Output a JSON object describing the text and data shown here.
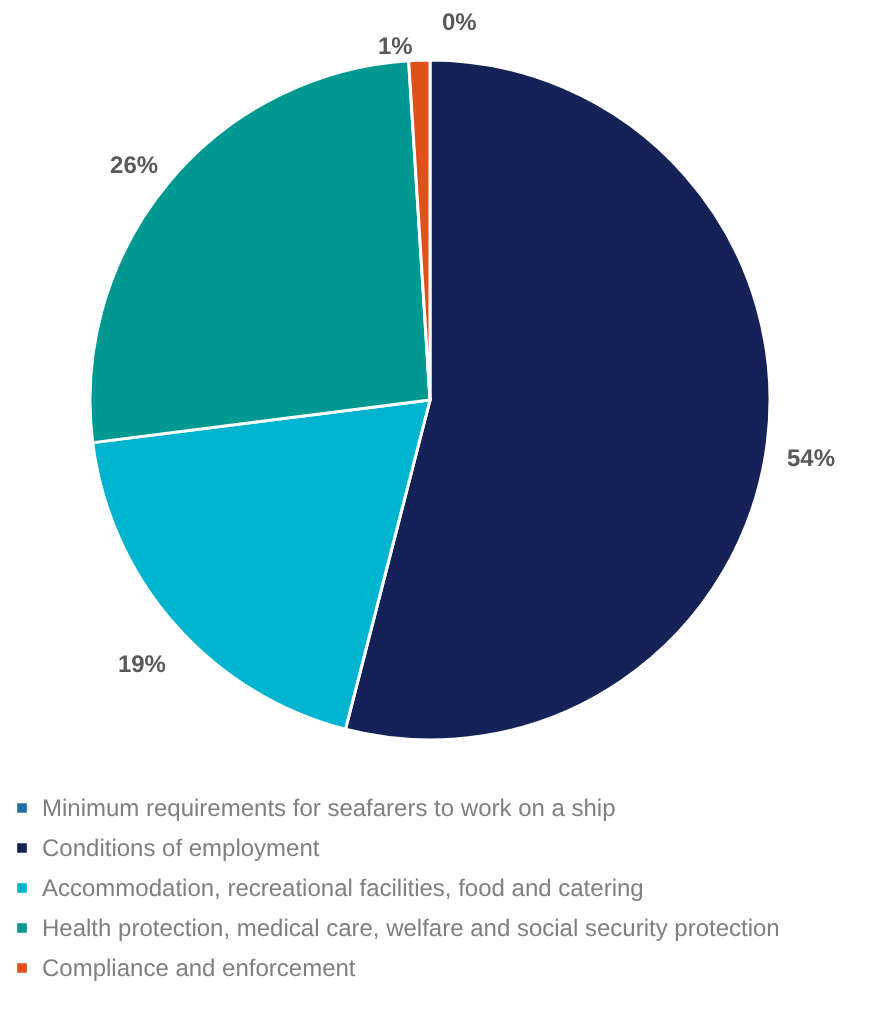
{
  "chart_data": {
    "type": "pie",
    "categories": [
      "Minimum requirements for seafarers to work on a ship",
      "Conditions of employment",
      "Accommodation, recreational facilities, food and catering",
      "Health protection, medical care, welfare and social security protection",
      "Compliance and enforcement"
    ],
    "values": [
      0,
      54,
      19,
      26,
      1
    ],
    "colors": [
      "#1f6fa8",
      "#152257",
      "#00b4d0",
      "#009991",
      "#e0501b"
    ],
    "value_labels": [
      "0%",
      "54%",
      "19%",
      "26%",
      "1%"
    ],
    "legend": "bottom"
  }
}
